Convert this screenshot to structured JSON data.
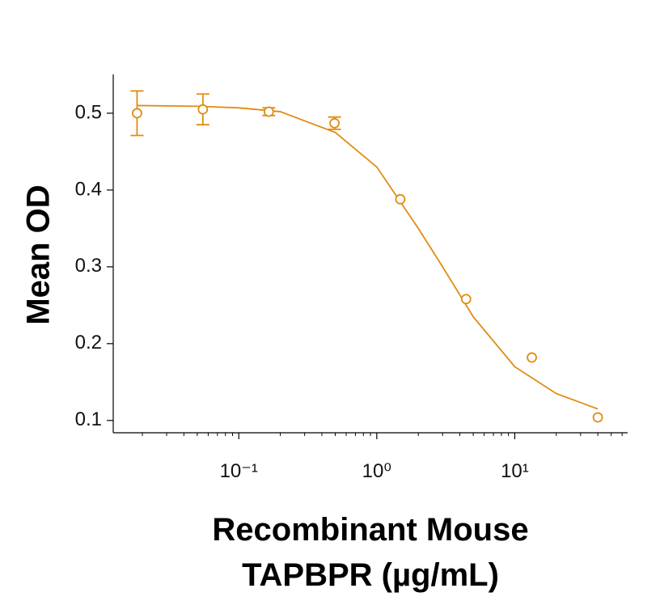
{
  "chart_data": {
    "type": "scatter",
    "color": "#e08c12",
    "log_x": true,
    "ylabel": "Mean OD",
    "xlabel": [
      "Recombinant Mouse",
      "TAPBPR (µg/mL)"
    ],
    "xlim": [
      0.0123,
      65.8
    ],
    "ylim": [
      0.084,
      0.5505
    ],
    "xticks": [
      {
        "value": 0.1,
        "label": "10⁻¹"
      },
      {
        "value": 1,
        "label": "10⁰"
      },
      {
        "value": 10,
        "label": "10¹"
      }
    ],
    "xminorticks": [
      0.02,
      0.03,
      0.04,
      0.05,
      0.06,
      0.07,
      0.08,
      0.09,
      0.2,
      0.3,
      0.4,
      0.5,
      0.6,
      0.7,
      0.8,
      0.9,
      2,
      3,
      4,
      5,
      6,
      7,
      8,
      9,
      20,
      30,
      40,
      50,
      60
    ],
    "yticks": [
      0.1,
      0.2,
      0.3,
      0.4,
      0.5
    ],
    "x": [
      0.0183,
      0.0549,
      0.165,
      0.494,
      1.48,
      4.44,
      13.3,
      40
    ],
    "values": [
      0.5,
      0.505,
      0.502,
      0.487,
      0.388,
      0.258,
      0.182,
      0.104
    ],
    "errors": [
      0.029,
      0.02,
      0.005,
      0.008,
      null,
      null,
      null,
      null
    ],
    "fit": {
      "x": [
        0.0183,
        0.05,
        0.1,
        0.2,
        0.5,
        1,
        2,
        3,
        5,
        10,
        20,
        40
      ],
      "values": [
        0.51,
        0.509,
        0.507,
        0.502,
        0.475,
        0.43,
        0.35,
        0.3,
        0.235,
        0.17,
        0.135,
        0.115
      ]
    }
  }
}
